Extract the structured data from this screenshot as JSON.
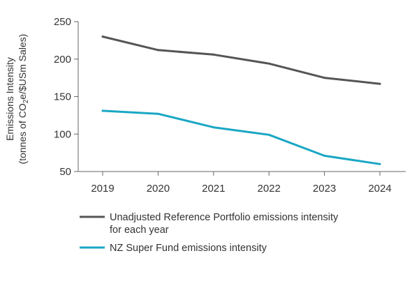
{
  "chart_data": {
    "type": "line",
    "x": [
      "2019",
      "2020",
      "2021",
      "2022",
      "2023",
      "2024"
    ],
    "ylim": [
      50,
      250
    ],
    "yticks": [
      "50",
      "100",
      "150",
      "200",
      "250"
    ],
    "ylabel": {
      "line1": "Emissions Intensity",
      "line2_prefix": "(tonnes of CO",
      "line2_sub": "2",
      "line2_suffix": "e/$USm Sales)"
    },
    "series": [
      {
        "name_line1": "Unadjusted Reference Portfolio emissions intensity",
        "name_line2": "for each year",
        "color": "#555555",
        "values": [
          230,
          212,
          206,
          194,
          175,
          167
        ]
      },
      {
        "name_line1": "NZ Super Fund emissions intensity",
        "name_line2": "",
        "color": "#1aa7c4",
        "values": [
          131,
          127,
          109,
          99,
          71,
          60
        ]
      }
    ],
    "grid": false,
    "legend_position": "bottom"
  }
}
